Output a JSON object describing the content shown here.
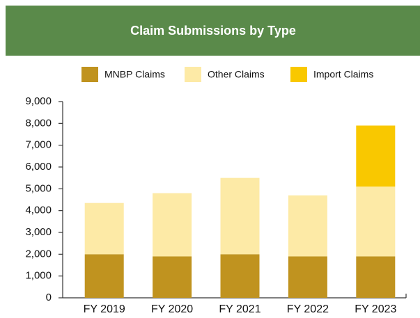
{
  "chart_data": {
    "type": "stacked_bar",
    "title": "Claim Submissions by Type",
    "categories": [
      "FY 2019",
      "FY 2020",
      "FY 2021",
      "FY 2022",
      "FY 2023"
    ],
    "series": [
      {
        "name": "MNBP Claims",
        "color": "#c0931f",
        "values": [
          2000,
          1900,
          2000,
          1900,
          1900
        ]
      },
      {
        "name": "Other Claims",
        "color": "#fdeaa6",
        "values": [
          2350,
          2900,
          3500,
          2800,
          3200
        ]
      },
      {
        "name": "Import Claims",
        "color": "#f9c800",
        "values": [
          null,
          null,
          null,
          null,
          2800
        ]
      }
    ],
    "ylim": [
      0,
      9000
    ],
    "yticks": [
      0,
      {
        "value": 1000,
        "label": "1,000"
      },
      {
        "value": 2000,
        "label": "2,000"
      },
      {
        "value": 3000,
        "label": "3,000"
      },
      {
        "value": 4000,
        "label": "4,000"
      },
      {
        "value": 5000,
        "label": "5,000"
      },
      {
        "value": 6000,
        "label": "6,000"
      },
      {
        "value": 7000,
        "label": "7,000"
      },
      {
        "value": 8000,
        "label": "8,000"
      },
      {
        "value": 9000,
        "label": "9,000"
      }
    ],
    "grid": false
  }
}
